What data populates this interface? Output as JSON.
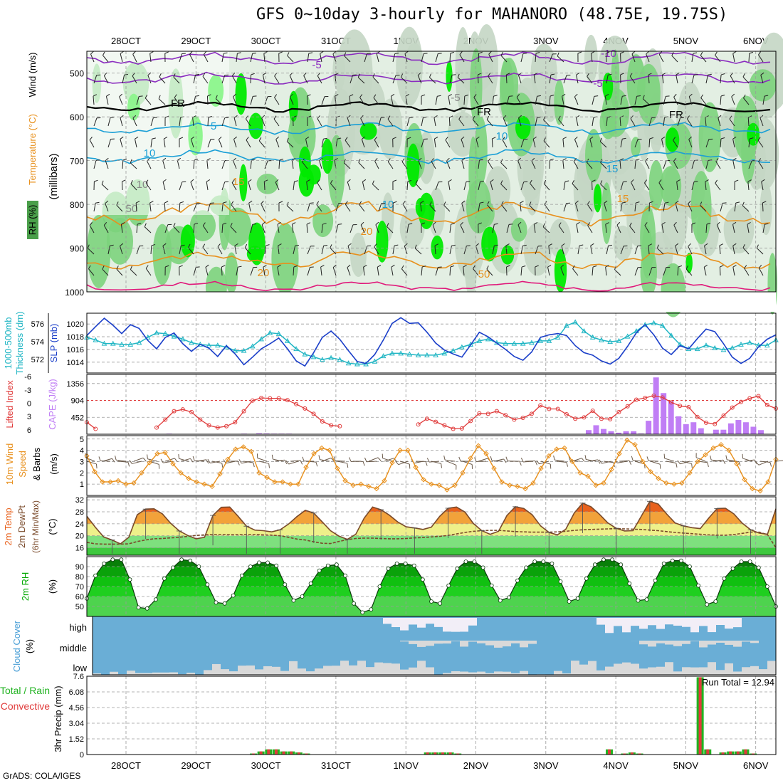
{
  "title": "GFS 0~10day 3-hourly for MAHANORO (48.75E, 19.75S)",
  "footer": "GrADS: COLA/IGES",
  "chart_data": {
    "type": "meteogram",
    "days": [
      "28OCT",
      "29OCT",
      "30OCT",
      "31OCT",
      "1NOV",
      "2NOV",
      "3NOV",
      "4NOV",
      "5NOV",
      "6NOV"
    ],
    "panels": {
      "upper_air": {
        "ylabel": "(millibars)",
        "legend": [
          "RH (%)",
          "Temperature (°C)",
          "Wind (m/s)"
        ],
        "pressure_ticks": [
          500,
          600,
          700,
          800,
          900,
          1000
        ],
        "contour_labels": [
          "-10",
          "-5",
          "-5",
          "FR",
          "FR",
          "FR",
          "-5",
          "5",
          "10",
          "10",
          "10",
          "15",
          "15",
          "15",
          "20",
          "20",
          "50",
          "50",
          "10"
        ],
        "colors": {
          "rh_light": "#e3efe3",
          "rh_mid": "#c4d6c4",
          "rh_green": "#7cd37c",
          "rh_bright": "#00ea00",
          "freezing": "#000000",
          "minus": "#8a2bbf",
          "cool": "#1a9fd6",
          "warm": "#e8901c",
          "hot": "#e0187a"
        }
      },
      "thickness_slp": {
        "labels": [
          "1000-500mb",
          "Thickness (dm)",
          "SLP (mb)"
        ],
        "thickness_ticks": [
          572,
          574,
          576
        ],
        "slp_ticks": [
          1014,
          1016,
          1018,
          1020
        ],
        "colors": {
          "thickness": "#21b6c4",
          "slp": "#1a3ec9"
        },
        "slp": [
          1018.2,
          1019.6,
          1020.9,
          1019.8,
          1018.5,
          1019.9,
          1019.3,
          1017.4,
          1016.1,
          1017.9,
          1018.6,
          1016.9,
          1015.7,
          1016.8,
          1016.2,
          1014.9,
          1016.6,
          1015.3,
          1013.6,
          1014.8,
          1016.1,
          1016.9,
          1017.8,
          1016.1,
          1014.2,
          1013.4,
          1015.5,
          1017.9,
          1018.9,
          1017.6,
          1015.8,
          1014.1,
          1013.8,
          1015.2,
          1017.5,
          1020.1,
          1021.0,
          1020.1,
          1020.2,
          1018.7,
          1017.0,
          1015.9,
          1015.3,
          1014.8,
          1016.7,
          1018.7,
          1018.0,
          1017.0,
          1016.0,
          1014.9,
          1014.3,
          1015.6,
          1017.9,
          1018.3,
          1018.5,
          1018.2,
          1016.6,
          1015.5,
          1015.1,
          1014.2,
          1013.7,
          1014.6,
          1016.5,
          1018.6,
          1019.9,
          1018.3,
          1016.2,
          1015.2,
          1016.6,
          1016.1,
          1017.7,
          1019.2,
          1018.8,
          1016.9,
          1014.8,
          1013.8,
          1014.6,
          1016.4,
          1017.6,
          1018.3
        ],
        "thickness": [
          574.5,
          574.2,
          573.8,
          573.8,
          573.7,
          573.7,
          573.9,
          574.5,
          575.0,
          574.9,
          574.6,
          574.3,
          573.9,
          573.7,
          573.6,
          573.6,
          573.4,
          573.0,
          573.0,
          573.5,
          574.3,
          575.0,
          574.9,
          574.1,
          573.2,
          572.6,
          572.3,
          572.0,
          572.2,
          572.0,
          571.6,
          571.5,
          571.5,
          571.8,
          572.4,
          572.7,
          572.7,
          572.6,
          572.5,
          572.5,
          572.5,
          572.7,
          573.0,
          573.4,
          573.7,
          574.1,
          574.3,
          573.9,
          573.8,
          573.8,
          573.8,
          573.9,
          574.1,
          574.1,
          574.5,
          575.8,
          576.2,
          575.2,
          574.5,
          574.2,
          574.0,
          574.1,
          574.6,
          575.2,
          575.9,
          576.1,
          575.8,
          574.7,
          573.7,
          573.2,
          573.2,
          573.6,
          573.3,
          573.1,
          573.3,
          573.7,
          573.9,
          573.6,
          573.6,
          574.2
        ]
      },
      "cape_li": {
        "labels": [
          "Lifted Index",
          "CAPE (J/kg)"
        ],
        "li_ticks": [
          -6,
          -3,
          0,
          3,
          6
        ],
        "cape_ticks": [
          452,
          904,
          1356
        ],
        "colors": {
          "li": "#e03b3b",
          "cape": "#c07ef5"
        },
        "li": [
          4.3,
          5.8,
          null,
          null,
          null,
          null,
          null,
          null,
          5.5,
          3.7,
          1.8,
          1.4,
          2.0,
          3.7,
          5.0,
          5.5,
          5.2,
          4.3,
          1.8,
          -0.6,
          -1.2,
          -1.1,
          -1.1,
          -0.7,
          0.2,
          1.2,
          2.4,
          4.1,
          5.0,
          5.2,
          null,
          null,
          null,
          null,
          null,
          null,
          null,
          null,
          4.8,
          3.5,
          4.2,
          5.0,
          5.8,
          5.7,
          4.0,
          2.3,
          2.4,
          1.8,
          2.7,
          3.7,
          3.3,
          2.4,
          0.5,
          1.3,
          1.3,
          2.5,
          3.5,
          3.2,
          1.7,
          3.5,
          3.6,
          2.0,
          0.7,
          -0.8,
          -1.2,
          -1.7,
          -1.3,
          -0.2,
          0.6,
          0.9,
          3.1,
          4.4,
          4.7,
          2.8,
          1.0,
          -0.3,
          -1.1,
          -1.6,
          0.4,
          1.2
        ],
        "cape": [
          0,
          0,
          0,
          0,
          0,
          0,
          0,
          0,
          0,
          0,
          0,
          15,
          0,
          0,
          0,
          0,
          0,
          0,
          0,
          0,
          0,
          15,
          0,
          25,
          20,
          15,
          15,
          15,
          0,
          0,
          0,
          0,
          0,
          0,
          0,
          0,
          0,
          0,
          0,
          0,
          0,
          0,
          0,
          0,
          0,
          0,
          0,
          0,
          0,
          0,
          0,
          0,
          0,
          0,
          0,
          0,
          0,
          0,
          0,
          0,
          0,
          0,
          0,
          0,
          0,
          0,
          0,
          110,
          240,
          140,
          80,
          40,
          80,
          80,
          20,
          360,
          1520,
          1100,
          880,
          480,
          270
        ],
        "cape_tail": [
          320,
          160,
          0,
          120,
          120,
          290,
          380,
          320,
          200,
          110,
          0,
          0
        ]
      },
      "wind10m": {
        "labels": [
          "10m Wind Speed & Barbs",
          "(m/s)"
        ],
        "ticks": [
          1,
          2,
          3,
          4,
          5
        ],
        "colors": {
          "speed": "#e8901c",
          "barbs": "#6b5a4a"
        },
        "speed": [
          3.5,
          2.1,
          1.2,
          1.2,
          1.3,
          1.0,
          1.1,
          2.0,
          2.9,
          3.7,
          3.8,
          2.8,
          2.0,
          1.5,
          1.2,
          1.0,
          0.8,
          1.9,
          3.2,
          4.1,
          4.3,
          3.9,
          2.0,
          1.6,
          1.2,
          1.2,
          1.0,
          1.0,
          2.5,
          3.7,
          4.2,
          4.0,
          2.4,
          1.3,
          0.9,
          1.0,
          0.8,
          0.6,
          1.3,
          2.9,
          4.0,
          4.0,
          2.5,
          1.4,
          1.0,
          0.9,
          0.5,
          0.9,
          2.0,
          3.3,
          4.4,
          3.7,
          2.4,
          1.2,
          0.9,
          0.8,
          0.6,
          1.1,
          2.4,
          3.5,
          4.1,
          4.2,
          3.0,
          2.0,
          1.7,
          0.9,
          1.1,
          2.3,
          3.7,
          4.9,
          4.5,
          3.0,
          2.1,
          1.5,
          1.1,
          1.0,
          1.1,
          2.0,
          3.0,
          3.6,
          4.2,
          4.5,
          4.0,
          2.8,
          1.4,
          0.6,
          0.4,
          1.2,
          3.2
        ]
      },
      "temp2m": {
        "labels": [
          "2m Temp",
          "2m DewPt",
          "(6hr Min/Max)",
          "(°C)"
        ],
        "ticks": [
          16,
          20,
          24,
          28,
          32
        ],
        "colors": {
          "temp_line": "#7a4a2a",
          "dew_line": "#7a4a2a",
          "orange_dark": "#e8611c",
          "orange": "#f2a23a",
          "yellow": "#eef08a",
          "green": "#7ee07e",
          "green_dark": "#3ec83e"
        },
        "temp": [
          26.5,
          22.9,
          19.6,
          18.6,
          17.3,
          19.5,
          27.0,
          28.9,
          29.0,
          27.3,
          24.1,
          21.6,
          20.1,
          19.0,
          19.5,
          26.8,
          29.5,
          29.6,
          26.5,
          23.2,
          21.9,
          21.7,
          21.3,
          22.0,
          23.9,
          26.4,
          28.5,
          27.6,
          24.7,
          21.7,
          19.9,
          18.8,
          20.5,
          25.9,
          29.6,
          28.7,
          26.9,
          24.6,
          23.0,
          22.6,
          22.1,
          22.9,
          26.5,
          29.2,
          29.6,
          27.9,
          24.1,
          21.7,
          20.5,
          21.5,
          26.8,
          29.7,
          29.1,
          27.0,
          23.3,
          21.1,
          20.3,
          22.2,
          27.6,
          30.9,
          29.7,
          27.2,
          24.3,
          22.5,
          21.6,
          21.7,
          26.6,
          31.5,
          30.6,
          27.3,
          24.3,
          23.3,
          22.7,
          22.4,
          25.9,
          29.1,
          29.2,
          27.3,
          24.2,
          22.0,
          20.9,
          20.5,
          29.0
        ],
        "dewpoint": [
          17.8,
          17.3,
          17.2,
          17.2,
          17.2,
          17.3,
          18.1,
          18.6,
          19.0,
          19.1,
          19.3,
          19.5,
          19.8,
          20.1,
          20.3,
          20.4,
          20.4,
          20.4,
          20.4,
          20.4,
          20.4,
          20.3,
          20.2,
          20.0,
          19.5,
          18.9,
          18.6,
          18.0,
          17.5,
          17.4,
          18.1,
          18.7,
          19.1,
          19.2,
          19.2,
          19.1,
          19.0,
          19.0,
          19.1,
          19.3,
          19.4,
          19.6,
          19.8,
          20.1,
          20.6,
          21.1,
          21.5,
          21.7,
          21.8,
          21.8,
          21.6,
          21.4,
          21.3,
          21.2,
          21.2,
          21.2,
          21.3,
          21.5,
          21.8,
          22.0,
          22.1,
          22.2,
          22.3,
          22.4,
          22.3,
          22.2,
          22.1,
          21.9,
          21.7,
          21.4,
          21.1,
          20.9,
          20.7,
          20.5,
          20.3,
          20.2,
          20.2,
          20.4,
          20.8,
          21.2,
          21.2,
          20.4,
          16.0
        ]
      },
      "rh2m": {
        "labels": [
          "2m RH",
          "(%)"
        ],
        "ticks": [
          50,
          60,
          70,
          80,
          90
        ],
        "colors": {
          "fill": "#00a800",
          "line": "#0b3b0b"
        },
        "rh": [
          58,
          81,
          93,
          97,
          97,
          77,
          49,
          48,
          57,
          78,
          89,
          97,
          96,
          90,
          72,
          54,
          53,
          61,
          81,
          90,
          94,
          94,
          91,
          72,
          56,
          60,
          73,
          86,
          91,
          92,
          81,
          53,
          44,
          47,
          70,
          88,
          93,
          93,
          91,
          77,
          55,
          53,
          71,
          88,
          95,
          95,
          89,
          71,
          56,
          59,
          76,
          89,
          95,
          95,
          93,
          75,
          55,
          58,
          78,
          92,
          97,
          97,
          92,
          73,
          56,
          57,
          76,
          93,
          96,
          96,
          90,
          71,
          52,
          55,
          78,
          88,
          95,
          95,
          89,
          70,
          50
        ]
      },
      "cloud": {
        "labels": [
          "Cloud Cover",
          "(%)"
        ],
        "levels": [
          "high",
          "middle",
          "low"
        ],
        "colors": {
          "sky": "#6aaed6",
          "cloud": "#d9d9d9",
          "cloud_high": "#f2eef7"
        }
      },
      "precip": {
        "labels": [
          "Total / Rain",
          "Convective",
          "3hr Precip (mm)"
        ],
        "ticks": [
          0,
          1.52,
          3.04,
          4.56,
          6.08,
          7.6
        ],
        "run_total_label": "Run Total =",
        "run_total": "12.94",
        "colors": {
          "total": "#21b321",
          "convective": "#e03b3b"
        },
        "total": [
          0,
          0,
          0,
          0,
          0,
          0,
          0,
          0,
          0,
          0,
          0,
          0,
          0,
          0,
          0,
          0,
          0,
          0,
          0,
          0,
          0,
          0,
          0.1,
          0.3,
          0.5,
          0.5,
          0.3,
          0.3,
          0.2,
          0.1,
          0,
          0,
          0,
          0,
          0,
          0,
          0,
          0,
          0,
          0,
          0,
          0,
          0,
          0,
          0,
          0.2,
          0.2,
          0.2,
          0.2,
          0.1,
          0,
          0,
          0,
          0,
          0,
          0,
          0,
          0,
          0,
          0,
          0,
          0,
          0,
          0,
          0,
          0,
          0,
          0,
          0,
          0.5,
          0,
          0.1,
          0.2,
          0.1,
          0,
          0,
          0,
          0,
          0,
          0,
          0,
          7.5,
          0.5,
          0,
          0.2,
          0.3,
          0.3,
          0.5,
          0.1,
          0,
          0,
          0
        ]
      }
    }
  }
}
